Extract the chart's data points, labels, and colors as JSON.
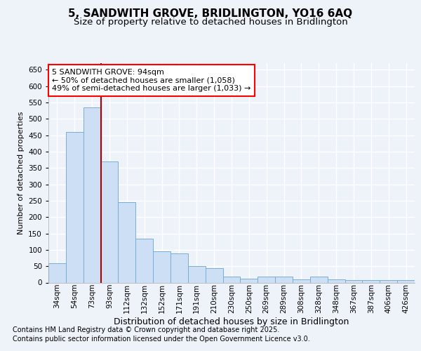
{
  "title_line1": "5, SANDWITH GROVE, BRIDLINGTON, YO16 6AQ",
  "title_line2": "Size of property relative to detached houses in Bridlington",
  "xlabel": "Distribution of detached houses by size in Bridlington",
  "ylabel": "Number of detached properties",
  "footnote1": "Contains HM Land Registry data © Crown copyright and database right 2025.",
  "footnote2": "Contains public sector information licensed under the Open Government Licence v3.0.",
  "annotation_line1": "5 SANDWITH GROVE: 94sqm",
  "annotation_line2": "← 50% of detached houses are smaller (1,058)",
  "annotation_line3": "49% of semi-detached houses are larger (1,033) →",
  "bar_color": "#ccdff5",
  "bar_edge_color": "#7aadd4",
  "categories": [
    "34sqm",
    "54sqm",
    "73sqm",
    "93sqm",
    "112sqm",
    "132sqm",
    "152sqm",
    "171sqm",
    "191sqm",
    "210sqm",
    "230sqm",
    "250sqm",
    "269sqm",
    "289sqm",
    "308sqm",
    "328sqm",
    "348sqm",
    "367sqm",
    "387sqm",
    "406sqm",
    "426sqm"
  ],
  "values": [
    60,
    460,
    535,
    370,
    245,
    135,
    95,
    90,
    50,
    45,
    18,
    12,
    18,
    18,
    10,
    18,
    10,
    8,
    8,
    7,
    8
  ],
  "red_line_index": 2.5,
  "ylim": [
    0,
    670
  ],
  "yticks": [
    0,
    50,
    100,
    150,
    200,
    250,
    300,
    350,
    400,
    450,
    500,
    550,
    600,
    650
  ],
  "background_color": "#eef2f9",
  "plot_bg_color": "#eef2f9",
  "grid_color": "#ffffff",
  "title_fontsize": 11,
  "subtitle_fontsize": 9.5,
  "ylabel_fontsize": 8,
  "xlabel_fontsize": 9,
  "tick_fontsize": 7.5,
  "footnote_fontsize": 7,
  "annotation_fontsize": 8
}
